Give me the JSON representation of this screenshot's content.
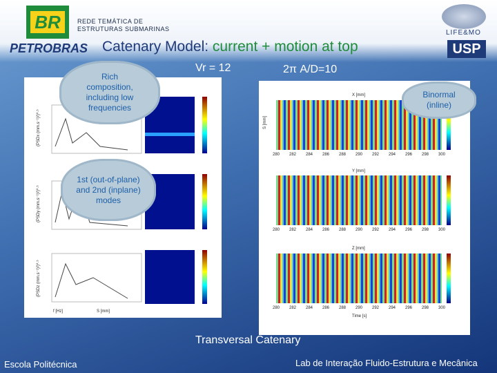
{
  "header": {
    "network": [
      "REDE TEMÁTICA DE",
      "ESTRUTURAS SUBMARINAS"
    ],
    "petrobras_logo": "BR",
    "petrobras_name": "PETROBRAS",
    "lab_logo": "LIFE&MO",
    "university_logo": "USP",
    "title_part1": "Catenary Model:",
    "title_part2": "current + motion at top"
  },
  "params": {
    "reduced_velocity": "Vr = 12",
    "amplitude": "2π A/D=10"
  },
  "callouts": [
    "Rich composition, including low frequencies",
    "1st (out-of-plane) and 2nd (inplane) modes",
    "Binormal (inline)"
  ],
  "left_panel": {
    "y_labels": [
      "(PSDx (mm.s⁻¹)²)⁰·⁵",
      "(PSDy (mm.s⁻¹)²)⁰·⁵",
      "(PSDz (mm.s⁻¹)²)⁰·⁵"
    ],
    "f_label": "f [Hz]",
    "s_label": "S [mm]"
  },
  "right_panel": {
    "titles": [
      "X [mm]",
      "Y [mm]",
      "Z [mm]"
    ],
    "s_label": "S [mm]",
    "time_label": "Time [s]",
    "time_ticks": [
      "280",
      "282",
      "284",
      "286",
      "288",
      "290",
      "292",
      "294",
      "296",
      "298",
      "300"
    ]
  },
  "caption": "Transversal Catenary",
  "footer": {
    "left": "Escola Politécnica",
    "right": "Lab de Interação Fluido-Estrutura e Mecânica"
  }
}
